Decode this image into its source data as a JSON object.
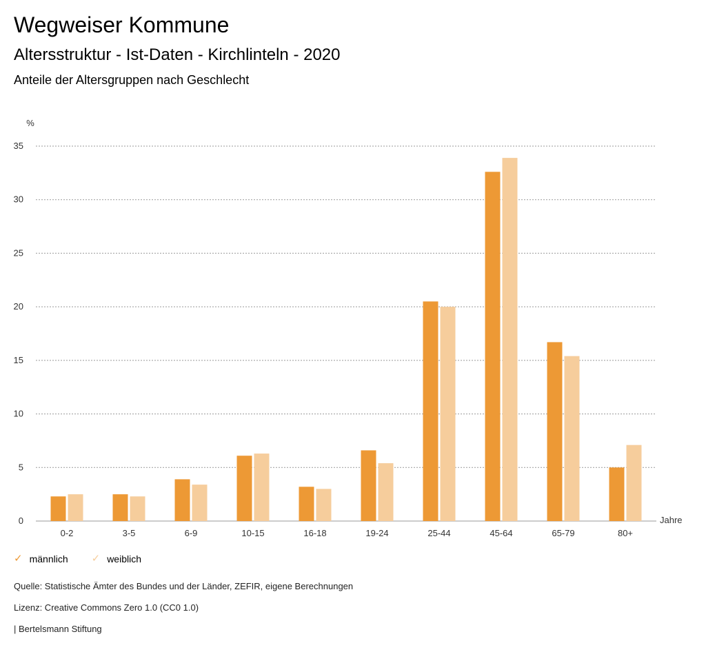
{
  "header": {
    "title": "Wegweiser Kommune",
    "subtitle": "Altersstruktur - Ist-Daten - Kirchlinteln - 2020",
    "subheading": "Anteile der Altersgruppen nach Geschlecht"
  },
  "chart_data": {
    "type": "bar",
    "ylabel": "%",
    "xlabel": "Jahre",
    "ylim": [
      0,
      35
    ],
    "yticks": [
      0,
      5,
      10,
      15,
      20,
      25,
      30,
      35
    ],
    "grid": true,
    "categories": [
      "0-2",
      "3-5",
      "6-9",
      "10-15",
      "16-18",
      "19-24",
      "25-44",
      "45-64",
      "65-79",
      "80+"
    ],
    "series": [
      {
        "name": "männlich",
        "color": "#ED9935",
        "values": [
          2.3,
          2.5,
          3.9,
          6.1,
          3.2,
          6.6,
          20.5,
          32.6,
          16.7,
          5.0
        ]
      },
      {
        "name": "weiblich",
        "color": "#F6CD9C",
        "values": [
          2.5,
          2.3,
          3.4,
          6.3,
          3.0,
          5.4,
          20.0,
          33.9,
          15.4,
          7.1
        ]
      }
    ],
    "legend_position": "bottom-left"
  },
  "footer": {
    "source": "Quelle: Statistische Ämter des Bundes und der Länder, ZEFIR, eigene Berechnungen",
    "license": "Lizenz: Creative Commons Zero 1.0 (CC0 1.0)",
    "publisher": "| Bertelsmann Stiftung"
  }
}
